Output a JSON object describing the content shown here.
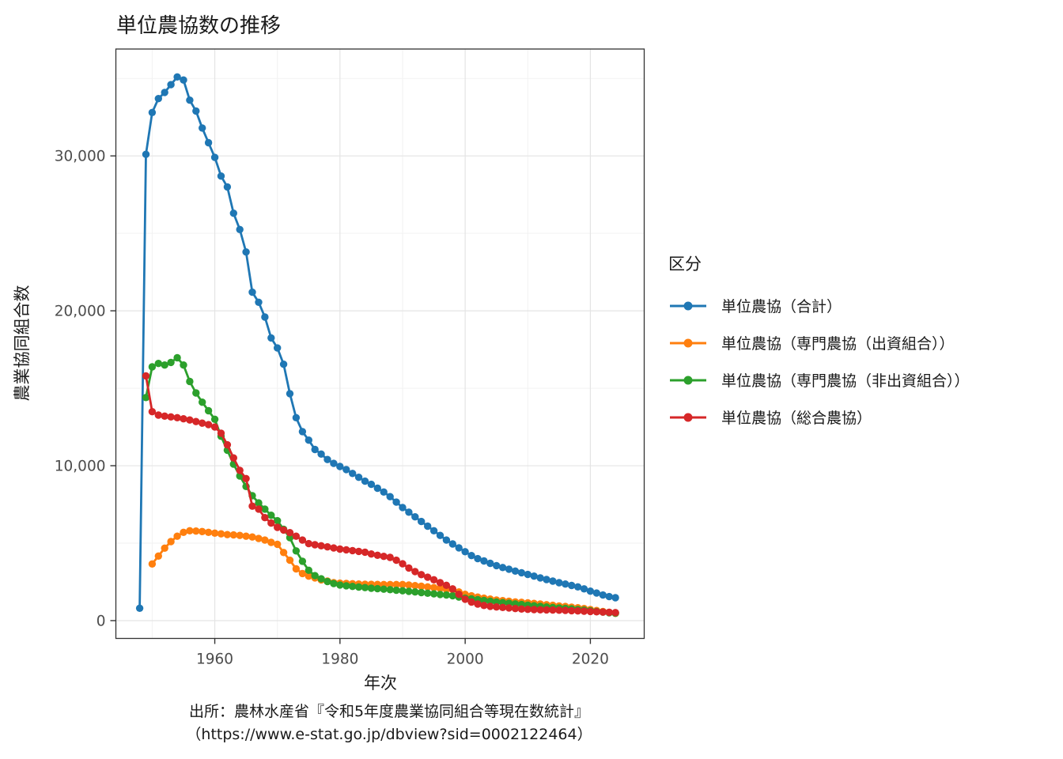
{
  "title": "単位農協数の推移",
  "caption": {
    "line1": "出所：農林水産省『令和5年度農業協同組合等現在数統計』",
    "line2": "（https://www.e-stat.go.jp/dbview?sid=0002122464）"
  },
  "legend": {
    "title": "区分",
    "items": [
      {
        "label": "単位農協（合計）",
        "color": "#1f77b4"
      },
      {
        "label": "単位農協（専門農協（出資組合））",
        "color": "#ff7f0e"
      },
      {
        "label": "単位農協（専門農協（非出資組合））",
        "color": "#2ca02c"
      },
      {
        "label": "単位農協（総合農協）",
        "color": "#d62728"
      }
    ]
  },
  "colors": {
    "grid_major": "#e4e4e4",
    "grid_minor": "#f2f2f2",
    "panel_border": "#333333",
    "tick_label": "#4d4d4d",
    "tick_mark": "#333333"
  },
  "chart_data": {
    "type": "line",
    "title": "単位農協数の推移",
    "xlabel": "年次",
    "ylabel": "農業協同組合数",
    "grid": true,
    "legend_position": "right",
    "x_range": [
      1944.2,
      2028.6
    ],
    "y_range": [
      -1150,
      36900
    ],
    "x_ticks": {
      "major": [
        1960,
        1980,
        2000,
        2020
      ],
      "labels": [
        "1960",
        "1980",
        "2000",
        "2020"
      ],
      "minor": [
        1950,
        1970,
        1990,
        2010
      ]
    },
    "y_ticks": {
      "major": [
        0,
        10000,
        20000,
        30000
      ],
      "labels": [
        "0",
        "10,000",
        "20,000",
        "30,000"
      ],
      "minor": [
        5000,
        15000,
        25000,
        35000
      ]
    },
    "series": [
      {
        "name": "単位農協（合計）",
        "color": "#1f77b4",
        "start_year": 1948,
        "values": [
          800,
          30100,
          32800,
          33700,
          34100,
          34600,
          35100,
          34900,
          33600,
          32900,
          31800,
          30850,
          29900,
          28700,
          28000,
          26300,
          25250,
          23800,
          21200,
          20550,
          19600,
          18250,
          17600,
          16550,
          14650,
          13100,
          12200,
          11650,
          11050,
          10750,
          10400,
          10150,
          9950,
          9750,
          9500,
          9250,
          9000,
          8800,
          8550,
          8300,
          8000,
          7650,
          7300,
          7000,
          6700,
          6400,
          6100,
          5800,
          5500,
          5200,
          4950,
          4700,
          4450,
          4200,
          4000,
          3850,
          3700,
          3550,
          3430,
          3320,
          3200,
          3090,
          2980,
          2870,
          2760,
          2650,
          2550,
          2450,
          2360,
          2270,
          2180,
          2050,
          1900,
          1780,
          1650,
          1550,
          1480
        ]
      },
      {
        "name": "単位農協（専門農協（出資組合））",
        "color": "#ff7f0e",
        "start_year": 1950,
        "values": [
          3660,
          4170,
          4680,
          5100,
          5450,
          5700,
          5800,
          5780,
          5750,
          5700,
          5650,
          5600,
          5550,
          5530,
          5500,
          5450,
          5400,
          5300,
          5200,
          5050,
          4930,
          4400,
          3900,
          3340,
          3040,
          2870,
          2760,
          2630,
          2550,
          2450,
          2420,
          2400,
          2380,
          2360,
          2350,
          2340,
          2335,
          2330,
          2330,
          2330,
          2330,
          2300,
          2260,
          2220,
          2180,
          2130,
          2080,
          2020,
          2000,
          1850,
          1700,
          1600,
          1520,
          1450,
          1390,
          1330,
          1290,
          1250,
          1210,
          1180,
          1150,
          1110,
          1070,
          1030,
          990,
          950,
          910,
          870,
          830,
          780,
          720,
          650,
          590,
          530,
          470
        ]
      },
      {
        "name": "単位農協（専門農協（非出資組合））",
        "color": "#2ca02c",
        "start_year": 1949,
        "values": [
          14400,
          16380,
          16600,
          16500,
          16670,
          16970,
          16500,
          15440,
          14700,
          14100,
          13550,
          13000,
          11900,
          11000,
          10100,
          9340,
          8660,
          8070,
          7600,
          7200,
          6800,
          6450,
          5900,
          5350,
          4500,
          3830,
          3250,
          2900,
          2700,
          2520,
          2390,
          2300,
          2250,
          2210,
          2170,
          2130,
          2090,
          2060,
          2030,
          2000,
          1960,
          1930,
          1890,
          1850,
          1810,
          1770,
          1730,
          1690,
          1650,
          1600,
          1520,
          1450,
          1400,
          1350,
          1300,
          1250,
          1200,
          1160,
          1120,
          1080,
          1040,
          1000,
          960,
          920,
          880,
          850,
          820,
          790,
          760,
          720,
          680,
          640,
          590,
          550,
          510,
          480
        ]
      },
      {
        "name": "単位農協（総合農協）",
        "color": "#d62728",
        "start_year": 1949,
        "values": [
          15800,
          13490,
          13270,
          13200,
          13150,
          13100,
          13030,
          12950,
          12850,
          12750,
          12650,
          12500,
          12100,
          11350,
          10500,
          9700,
          9170,
          7390,
          7200,
          6650,
          6300,
          6020,
          5850,
          5680,
          5450,
          5200,
          4970,
          4900,
          4830,
          4760,
          4690,
          4620,
          4570,
          4520,
          4470,
          4420,
          4300,
          4220,
          4150,
          4080,
          3900,
          3670,
          3400,
          3170,
          2970,
          2800,
          2635,
          2450,
          2280,
          2050,
          1700,
          1380,
          1200,
          1070,
          980,
          920,
          880,
          850,
          820,
          780,
          750,
          730,
          715,
          700,
          690,
          680,
          670,
          655,
          640,
          625,
          610,
          590,
          570,
          550,
          535,
          520
        ]
      }
    ]
  }
}
